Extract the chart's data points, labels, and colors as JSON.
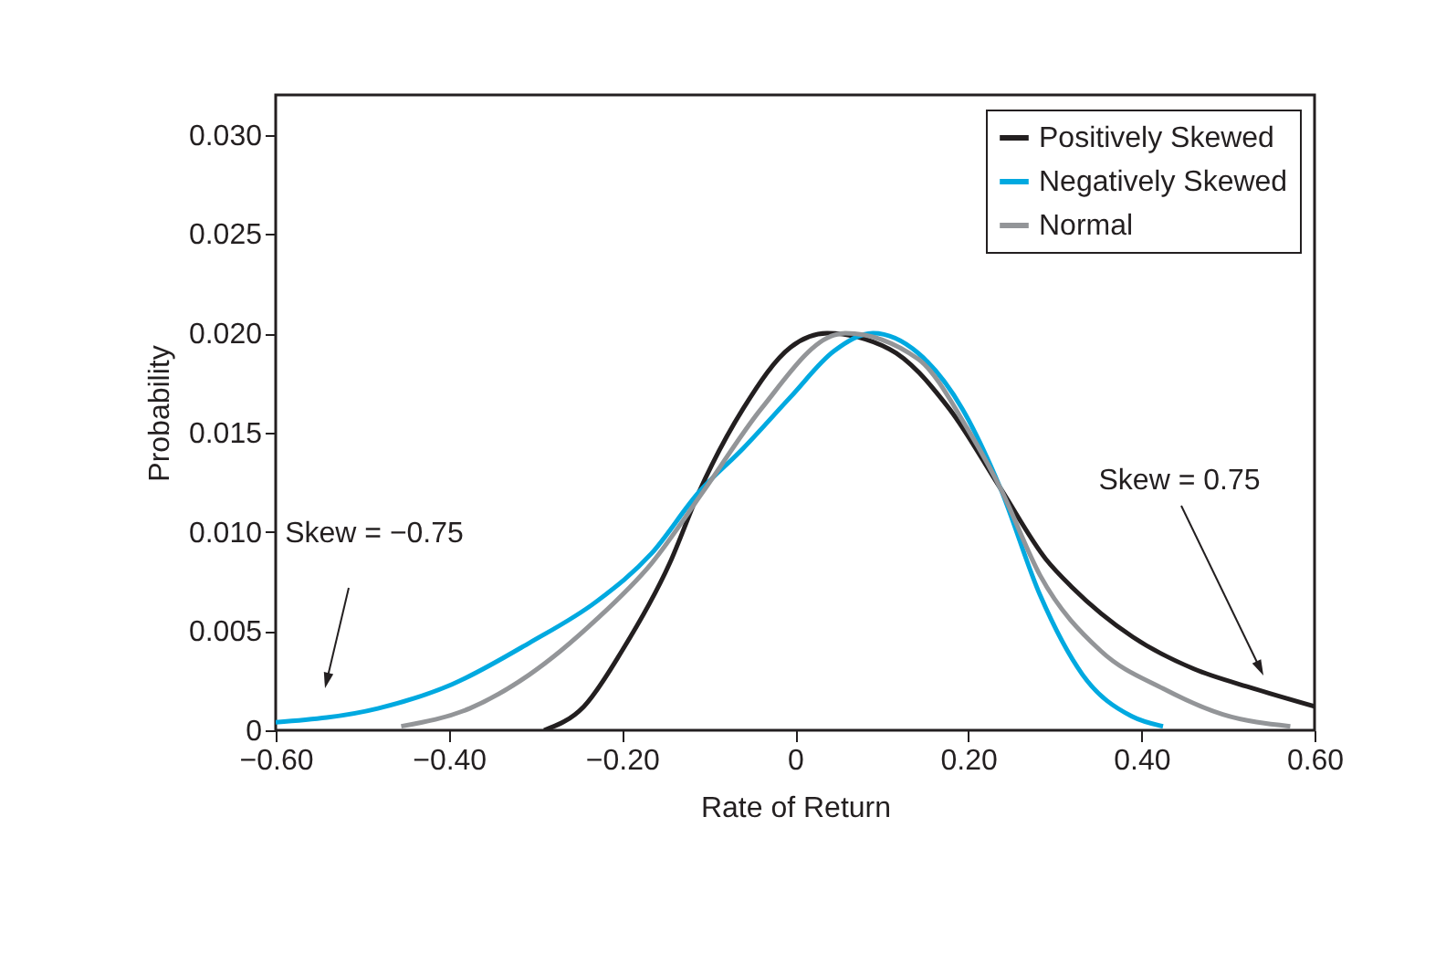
{
  "chart_data": {
    "type": "line",
    "xlabel": "Rate of Return",
    "ylabel": "Probability",
    "xlim": [
      -0.6,
      0.6
    ],
    "ylim": [
      0,
      0.032
    ],
    "xticks": [
      {
        "value": -0.6,
        "label": "−0.60"
      },
      {
        "value": -0.4,
        "label": "−0.40"
      },
      {
        "value": -0.2,
        "label": "−0.20"
      },
      0,
      {
        "value": 0.2,
        "label": "0.20"
      },
      {
        "value": 0.4,
        "label": "0.40"
      },
      {
        "value": 0.6,
        "label": "0.60"
      }
    ],
    "yticks": [
      0,
      0.005,
      {
        "value": 0.01,
        "label": "0.010"
      },
      0.015,
      {
        "value": 0.02,
        "label": "0.020"
      },
      0.025,
      {
        "value": 0.03,
        "label": "0.030"
      }
    ],
    "legend": "top right",
    "grid": false,
    "line_style": "solid",
    "marker": "none",
    "series": [
      {
        "name": "Positively Skewed",
        "color": "#231f20",
        "x": [
          -0.29,
          -0.244,
          -0.2,
          -0.145,
          -0.111,
          -0.06,
          -0.005,
          0.037,
          0.109,
          0.178,
          0.237,
          0.29,
          0.32,
          0.39,
          0.46,
          0.53,
          0.6
        ],
        "values": [
          0,
          0.0012,
          0.004,
          0.0084,
          0.012,
          0.0162,
          0.0193,
          0.02,
          0.0192,
          0.0162,
          0.0122,
          0.0086,
          0.0072,
          0.0047,
          0.0031,
          0.0021,
          0.0012
        ]
      },
      {
        "name": "Negatively Skewed",
        "color": "#00a9e0",
        "x": [
          -0.6,
          -0.482,
          -0.397,
          -0.307,
          -0.229,
          -0.166,
          -0.111,
          -0.06,
          -0.005,
          0.045,
          0.09,
          0.142,
          0.193,
          0.237,
          0.283,
          0.332,
          0.389,
          0.425
        ],
        "values": [
          0.0004,
          0.0011,
          0.0023,
          0.0044,
          0.0065,
          0.0089,
          0.012,
          0.0142,
          0.0168,
          0.0191,
          0.02,
          0.019,
          0.0162,
          0.0122,
          0.0068,
          0.0028,
          0.0007,
          0.0002
        ]
      },
      {
        "name": "Normal",
        "color": "#939598",
        "x": [
          -0.455,
          -0.376,
          -0.307,
          -0.229,
          -0.166,
          -0.105,
          -0.039,
          0.045,
          0.058,
          0.142,
          0.199,
          0.237,
          0.283,
          0.353,
          0.425,
          0.494,
          0.572
        ],
        "values": [
          0.0002,
          0.0011,
          0.0028,
          0.0056,
          0.0084,
          0.0121,
          0.0162,
          0.0199,
          0.02,
          0.0187,
          0.0152,
          0.0122,
          0.0078,
          0.004,
          0.0021,
          0.0008,
          0.0002
        ]
      }
    ],
    "annotations": [
      "Skew = −0.75",
      "Skew = 0.75"
    ]
  }
}
